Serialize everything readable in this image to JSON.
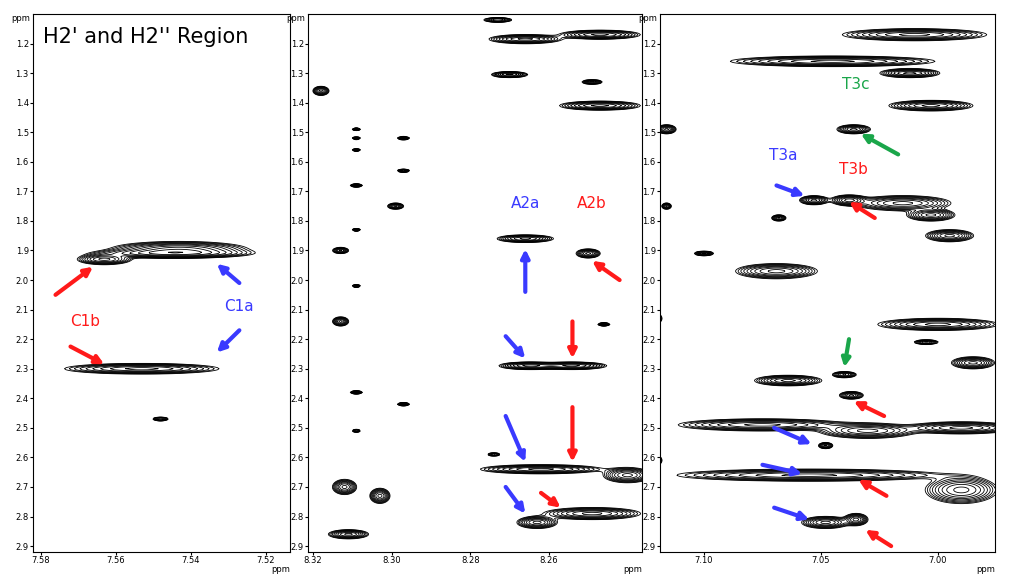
{
  "chart_data": [
    {
      "type": "contour",
      "text": "H2' and H2'' Region",
      "xlabel": "ppm",
      "ylabel": "ppm",
      "xlim": [
        7.582,
        7.5135
      ],
      "ylim": [
        2.92,
        1.1
      ],
      "xticks": [
        7.58,
        7.56,
        7.54,
        7.52
      ],
      "yticks": [
        1.2,
        1.3,
        1.4,
        1.5,
        1.6,
        1.7,
        1.8,
        1.9,
        2.0,
        2.1,
        2.2,
        2.3,
        2.4,
        2.5,
        2.6,
        2.7,
        2.8,
        2.9
      ],
      "color": "#000000",
      "peaks": {
        "x": [
          7.563,
          7.543,
          7.545,
          7.553,
          7.548
        ],
        "y": [
          1.93,
          1.895,
          1.91,
          2.3,
          2.47
        ],
        "width": [
          0.014,
          0.035,
          0.04,
          0.04,
          0.004
        ],
        "height": [
          0.035,
          0.05,
          0.03,
          0.035,
          0.012
        ]
      },
      "annotations": [
        {
          "text": "C1b",
          "x": 7.568,
          "y": 2.14,
          "color": "#ff1a1a"
        },
        {
          "text": "C1a",
          "x": 7.527,
          "y": 2.09,
          "color": "#3a3aff"
        }
      ],
      "arrows": [
        {
          "from": [
            7.576,
            2.05
          ],
          "to": [
            7.566,
            1.955
          ],
          "color": "#ff1a1a"
        },
        {
          "from": [
            7.572,
            2.225
          ],
          "to": [
            7.563,
            2.285
          ],
          "color": "#ff1a1a"
        },
        {
          "from": [
            7.527,
            2.01
          ],
          "to": [
            7.533,
            1.945
          ],
          "color": "#3a3aff"
        },
        {
          "from": [
            7.527,
            2.17
          ],
          "to": [
            7.533,
            2.245
          ],
          "color": "#3a3aff"
        }
      ]
    },
    {
      "type": "contour",
      "xlabel": "ppm",
      "ylabel": "ppm",
      "xlim": [
        8.3213,
        8.2363
      ],
      "ylim": [
        2.92,
        1.1
      ],
      "xticks": [
        8.32,
        {
          "value": 8.3,
          "label": "8.30"
        },
        8.28,
        8.26
      ],
      "yticks": [
        1.2,
        1.3,
        1.4,
        1.5,
        1.6,
        1.7,
        1.8,
        1.9,
        2.0,
        2.1,
        2.2,
        2.3,
        2.4,
        2.5,
        2.6,
        2.7,
        2.8,
        2.9
      ],
      "color": "#000000",
      "peaks": {
        "x": [
          8.273,
          8.266,
          8.247,
          8.27,
          8.249,
          8.247,
          8.318,
          8.309,
          8.309,
          8.297,
          8.309,
          8.297,
          8.309,
          8.299,
          8.309,
          8.313,
          8.309,
          8.313,
          8.266,
          8.25,
          8.246,
          8.265,
          8.254,
          8.309,
          8.297,
          8.309,
          8.274,
          8.262,
          8.24,
          8.312,
          8.303,
          8.263,
          8.249,
          8.311
        ],
        "y": [
          1.12,
          1.185,
          1.17,
          1.305,
          1.33,
          1.41,
          1.36,
          1.49,
          1.52,
          1.52,
          1.56,
          1.63,
          1.68,
          1.75,
          1.83,
          1.9,
          2.02,
          2.14,
          1.86,
          1.91,
          2.15,
          2.29,
          2.29,
          2.38,
          2.42,
          2.51,
          2.59,
          2.64,
          2.66,
          2.7,
          2.73,
          2.82,
          2.79,
          2.86
        ],
        "width": [
          0.007,
          0.018,
          0.02,
          0.009,
          0.005,
          0.02,
          0.004,
          0.002,
          0.002,
          0.003,
          0.002,
          0.003,
          0.003,
          0.004,
          0.002,
          0.004,
          0.002,
          0.004,
          0.014,
          0.006,
          0.003,
          0.015,
          0.017,
          0.003,
          0.003,
          0.002,
          0.003,
          0.03,
          0.012,
          0.006,
          0.005,
          0.01,
          0.024,
          0.01
        ],
        "height": [
          0.015,
          0.03,
          0.03,
          0.02,
          0.015,
          0.03,
          0.03,
          0.008,
          0.008,
          0.01,
          0.008,
          0.01,
          0.01,
          0.02,
          0.008,
          0.02,
          0.008,
          0.03,
          0.025,
          0.03,
          0.01,
          0.025,
          0.025,
          0.01,
          0.01,
          0.008,
          0.01,
          0.03,
          0.05,
          0.05,
          0.05,
          0.04,
          0.04,
          0.03
        ]
      },
      "annotations": [
        {
          "text": "A2a",
          "x": 8.266,
          "y": 1.74,
          "color": "#3a3aff"
        },
        {
          "text": "A2b",
          "x": 8.249,
          "y": 1.74,
          "color": "#ff1a1a"
        }
      ],
      "arrows": [
        {
          "from": [
            8.266,
            2.04
          ],
          "to": [
            8.266,
            1.895
          ],
          "color": "#3a3aff"
        },
        {
          "from": [
            8.242,
            2.0
          ],
          "to": [
            8.249,
            1.935
          ],
          "color": "#ff1a1a"
        },
        {
          "from": [
            8.271,
            2.19
          ],
          "to": [
            8.266,
            2.265
          ],
          "color": "#3a3aff"
        },
        {
          "from": [
            8.271,
            2.46
          ],
          "to": [
            8.266,
            2.615
          ],
          "color": "#3a3aff"
        },
        {
          "from": [
            8.271,
            2.7
          ],
          "to": [
            8.266,
            2.79
          ],
          "color": "#3a3aff"
        },
        {
          "from": [
            8.254,
            2.14
          ],
          "to": [
            8.254,
            2.265
          ],
          "color": "#ff1a1a"
        },
        {
          "from": [
            8.254,
            2.43
          ],
          "to": [
            8.254,
            2.615
          ],
          "color": "#ff1a1a"
        },
        {
          "from": [
            8.262,
            2.72
          ],
          "to": [
            8.257,
            2.77
          ],
          "color": "#ff1a1a"
        }
      ]
    },
    {
      "type": "contour",
      "xlabel": "ppm",
      "ylabel": "ppm",
      "xlim": [
        7.1188,
        6.9756
      ],
      "ylim": [
        2.92,
        1.1
      ],
      "xticks": [
        {
          "value": 7.1,
          "label": "7.10"
        },
        7.05,
        {
          "value": 7.0,
          "label": "7.00"
        }
      ],
      "yticks": [
        1.2,
        1.3,
        1.4,
        1.5,
        1.6,
        1.7,
        1.8,
        1.9,
        2.0,
        2.1,
        2.2,
        2.3,
        2.4,
        2.5,
        2.6,
        2.7,
        2.8,
        2.9
      ],
      "color": "#000000",
      "peaks": {
        "x": [
          7.01,
          7.045,
          7.012,
          7.116,
          7.036,
          7.003,
          7.053,
          7.038,
          7.015,
          7.003,
          6.995,
          7.068,
          7.1,
          7.116,
          7.069,
          7.12,
          7.0,
          7.005,
          6.985,
          7.064,
          7.04,
          7.037,
          7.075,
          7.03,
          6.99,
          7.048,
          7.12,
          7.055,
          6.99,
          7.048,
          7.035
        ],
        "y": [
          1.17,
          1.26,
          1.3,
          1.49,
          1.49,
          1.41,
          1.73,
          1.73,
          1.74,
          1.78,
          1.85,
          1.79,
          1.91,
          1.75,
          1.97,
          2.13,
          2.15,
          2.21,
          2.28,
          2.34,
          2.32,
          2.39,
          2.49,
          2.51,
          2.5,
          2.56,
          2.61,
          2.66,
          2.71,
          2.82,
          2.81
        ],
        "width": [
          0.06,
          0.085,
          0.025,
          0.008,
          0.014,
          0.035,
          0.012,
          0.015,
          0.04,
          0.02,
          0.02,
          0.006,
          0.008,
          0.004,
          0.034,
          0.004,
          0.05,
          0.01,
          0.018,
          0.028,
          0.01,
          0.01,
          0.07,
          0.04,
          0.045,
          0.006,
          0.004,
          0.11,
          0.03,
          0.02,
          0.01
        ],
        "height": [
          0.04,
          0.035,
          0.03,
          0.03,
          0.03,
          0.035,
          0.03,
          0.035,
          0.05,
          0.04,
          0.04,
          0.02,
          0.015,
          0.02,
          0.05,
          0.03,
          0.04,
          0.015,
          0.04,
          0.035,
          0.02,
          0.025,
          0.04,
          0.05,
          0.04,
          0.02,
          0.03,
          0.04,
          0.09,
          0.04,
          0.04
        ]
      },
      "annotations": [
        {
          "text": "T3c",
          "x": 7.035,
          "y": 1.34,
          "color": "#1aa64a"
        },
        {
          "text": "T3a",
          "x": 7.066,
          "y": 1.58,
          "color": "#3a3aff"
        },
        {
          "text": "T3b",
          "x": 7.036,
          "y": 1.625,
          "color": "#ff1a1a"
        }
      ],
      "arrows": [
        {
          "from": [
            7.017,
            1.575
          ],
          "to": [
            7.033,
            1.505
          ],
          "color": "#1aa64a"
        },
        {
          "from": [
            7.038,
            2.2
          ],
          "to": [
            7.04,
            2.295
          ],
          "color": "#1aa64a"
        },
        {
          "from": [
            7.069,
            1.68
          ],
          "to": [
            7.057,
            1.715
          ],
          "color": "#3a3aff"
        },
        {
          "from": [
            7.027,
            1.79
          ],
          "to": [
            7.038,
            1.735
          ],
          "color": "#ff1a1a"
        },
        {
          "from": [
            7.07,
            2.5
          ],
          "to": [
            7.054,
            2.555
          ],
          "color": "#3a3aff"
        },
        {
          "from": [
            7.075,
            2.625
          ],
          "to": [
            7.058,
            2.655
          ],
          "color": "#3a3aff"
        },
        {
          "from": [
            7.07,
            2.77
          ],
          "to": [
            7.055,
            2.81
          ],
          "color": "#3a3aff"
        },
        {
          "from": [
            7.023,
            2.46
          ],
          "to": [
            7.036,
            2.41
          ],
          "color": "#ff1a1a"
        },
        {
          "from": [
            7.022,
            2.73
          ],
          "to": [
            7.034,
            2.675
          ],
          "color": "#ff1a1a"
        },
        {
          "from": [
            7.02,
            2.9
          ],
          "to": [
            7.031,
            2.845
          ],
          "color": "#ff1a1a"
        }
      ]
    }
  ]
}
